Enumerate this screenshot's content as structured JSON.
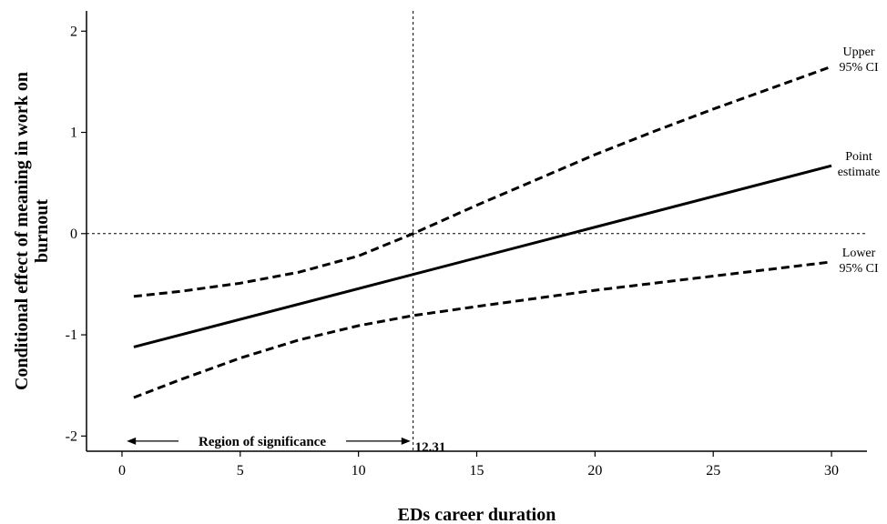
{
  "chart_data": {
    "type": "line",
    "title": "",
    "xlabel": "EDs career duration",
    "ylabel": "Conditional effect of meaning in work on burnout",
    "ylabel_lines": [
      "Conditional effect of meaning in work on",
      "burnout"
    ],
    "xlim": [
      -1.5,
      31.5
    ],
    "ylim": [
      -2.15,
      2.2
    ],
    "xticks": [
      0,
      5,
      10,
      15,
      20,
      25,
      30
    ],
    "yticks": [
      -2,
      -1,
      0,
      1,
      2
    ],
    "grid": false,
    "series": [
      {
        "name": "Upper 95% CI",
        "label_lines": [
          "Upper",
          "95% CI"
        ],
        "style": "dashed",
        "points": [
          [
            0.5,
            -0.62
          ],
          [
            2.5,
            -0.57
          ],
          [
            5,
            -0.49
          ],
          [
            7.5,
            -0.38
          ],
          [
            10,
            -0.22
          ],
          [
            12.31,
            0.0
          ],
          [
            15,
            0.28
          ],
          [
            17.5,
            0.53
          ],
          [
            20,
            0.78
          ],
          [
            22.5,
            1.01
          ],
          [
            25,
            1.23
          ],
          [
            27.5,
            1.44
          ],
          [
            30,
            1.65
          ]
        ]
      },
      {
        "name": "Point estimate",
        "label_lines": [
          "Point",
          "estimate"
        ],
        "style": "solid",
        "points": [
          [
            0.5,
            -1.12
          ],
          [
            30,
            0.67
          ]
        ]
      },
      {
        "name": "Lower 95% CI",
        "label_lines": [
          "Lower",
          "95% CI"
        ],
        "style": "dashed",
        "points": [
          [
            0.5,
            -1.62
          ],
          [
            2.5,
            -1.44
          ],
          [
            5,
            -1.23
          ],
          [
            7.5,
            -1.05
          ],
          [
            10,
            -0.91
          ],
          [
            12.31,
            -0.81
          ],
          [
            15,
            -0.72
          ],
          [
            17.5,
            -0.64
          ],
          [
            20,
            -0.56
          ],
          [
            22.5,
            -0.49
          ],
          [
            25,
            -0.42
          ],
          [
            27.5,
            -0.35
          ],
          [
            30,
            -0.28
          ]
        ]
      }
    ],
    "reference_lines": {
      "horizontal_y": 0,
      "vertical_x": 12.31
    },
    "annotations": {
      "region_label": "Region of significance",
      "region_x": [
        0.2,
        12.2
      ],
      "region_y": -2.05,
      "threshold_label": "12.31"
    }
  }
}
